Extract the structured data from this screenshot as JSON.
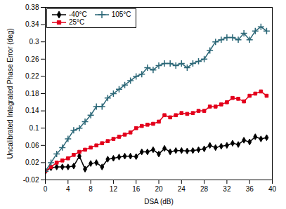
{
  "chart_data": {
    "type": "line",
    "x_label": "DSA (dB)",
    "y_label": "Uncalibrated Integrated Phase Error (deg)",
    "x": [
      0,
      1,
      2,
      3,
      4,
      5,
      6,
      7,
      8,
      9,
      10,
      11,
      12,
      13,
      14,
      15,
      16,
      17,
      18,
      19,
      20,
      21,
      22,
      23,
      24,
      25,
      26,
      27,
      28,
      29,
      30,
      31,
      32,
      33,
      34,
      35,
      36,
      37,
      38,
      39
    ],
    "series": [
      {
        "name": "-40°C",
        "color": "#000000",
        "marker": "diamond",
        "values": [
          0,
          0.008,
          0.01,
          0.01,
          0.01,
          0.012,
          0.035,
          0.005,
          0.018,
          0.02,
          0.01,
          0.028,
          0.03,
          0.033,
          0.035,
          0.035,
          0.034,
          0.045,
          0.045,
          0.05,
          0.04,
          0.053,
          0.045,
          0.048,
          0.048,
          0.047,
          0.048,
          0.05,
          0.052,
          0.06,
          0.055,
          0.058,
          0.06,
          0.065,
          0.062,
          0.072,
          0.068,
          0.08,
          0.075,
          0.078
        ]
      },
      {
        "name": "25°C",
        "color": "#e3001b",
        "marker": "square",
        "values": [
          0,
          0.01,
          0.02,
          0.025,
          0.03,
          0.038,
          0.045,
          0.05,
          0.055,
          0.06,
          0.065,
          0.07,
          0.075,
          0.08,
          0.085,
          0.09,
          0.1,
          0.105,
          0.108,
          0.11,
          0.115,
          0.13,
          0.125,
          0.13,
          0.135,
          0.133,
          0.135,
          0.14,
          0.14,
          0.15,
          0.15,
          0.155,
          0.16,
          0.17,
          0.168,
          0.162,
          0.175,
          0.18,
          0.185,
          0.175
        ]
      },
      {
        "name": "105°C",
        "color": "#2b6777",
        "marker": "plus",
        "values": [
          0,
          0.02,
          0.04,
          0.055,
          0.075,
          0.095,
          0.1,
          0.115,
          0.13,
          0.15,
          0.15,
          0.17,
          0.18,
          0.19,
          0.2,
          0.21,
          0.22,
          0.225,
          0.24,
          0.235,
          0.245,
          0.25,
          0.25,
          0.245,
          0.25,
          0.24,
          0.25,
          0.255,
          0.26,
          0.28,
          0.3,
          0.305,
          0.31,
          0.31,
          0.305,
          0.32,
          0.305,
          0.325,
          0.335,
          0.325
        ]
      }
    ],
    "xlim": [
      0,
      40
    ],
    "xticks": [
      0,
      4,
      8,
      12,
      16,
      20,
      24,
      28,
      32,
      36,
      40
    ],
    "ylim": [
      -0.02,
      0.38
    ],
    "yticks": [
      -0.02,
      0.02,
      0.06,
      0.1,
      0.14,
      0.18,
      0.22,
      0.26,
      0.3,
      0.34,
      0.38
    ],
    "grid": false,
    "legend": "upper left"
  }
}
